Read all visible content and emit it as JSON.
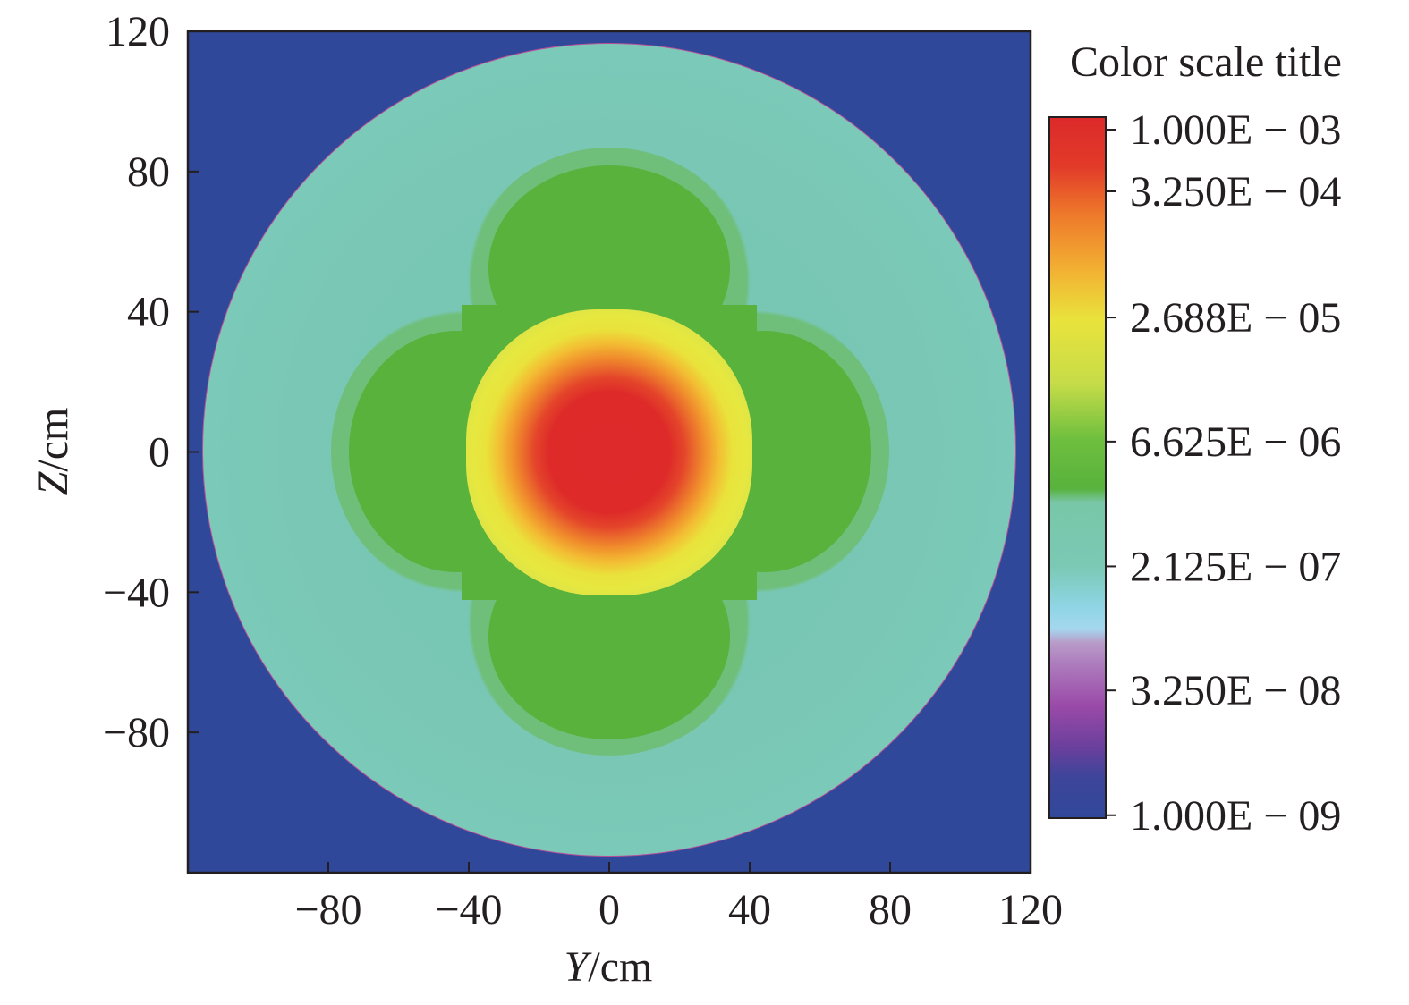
{
  "chart_data": {
    "type": "heatmap",
    "xlabel_var": "Y",
    "xlabel_unit": "/cm",
    "ylabel_var": "Z",
    "ylabel_unit": "/cm",
    "xlim": [
      -120,
      120
    ],
    "ylim": [
      -120,
      120
    ],
    "x_ticks": [
      -80,
      -40,
      0,
      40,
      80,
      120
    ],
    "x_tick_labels": [
      "−80",
      "−40",
      "0",
      "40",
      "80",
      "120"
    ],
    "y_ticks": [
      120,
      80,
      40,
      0,
      -40,
      -80
    ],
    "y_tick_labels": [
      "120",
      "80",
      "40",
      "0",
      "−40",
      "−80"
    ],
    "colorbar": {
      "title": "Color scale title",
      "scale": "log",
      "range": [
        1e-09,
        0.001
      ],
      "tick_values": [
        0.001,
        0.000325,
        2.688e-05,
        6.625e-06,
        2.125e-07,
        3.25e-08,
        1e-09
      ],
      "tick_labels": [
        "1.000E − 03",
        "3.250E − 04",
        "2.688E − 05",
        "6.625E − 06",
        "2.125E − 07",
        "3.250E − 08",
        "1.000E − 09"
      ]
    },
    "field": {
      "shape": "circle",
      "center": [
        0,
        0
      ],
      "radius": 115,
      "outside_value": 1e-09,
      "max_value": 0.001,
      "max_location": [
        0,
        0
      ]
    },
    "colors": {
      "background": "#30489a",
      "red": "#de2a2a",
      "orange": "#f08d2c",
      "yellow": "#e6e840",
      "green": "#58b23c",
      "teal": "#79c7b4",
      "light_blue": "#8fd5e6",
      "magenta": "#b94f9a",
      "purple": "#6a3f9c",
      "navy": "#30489a"
    }
  }
}
